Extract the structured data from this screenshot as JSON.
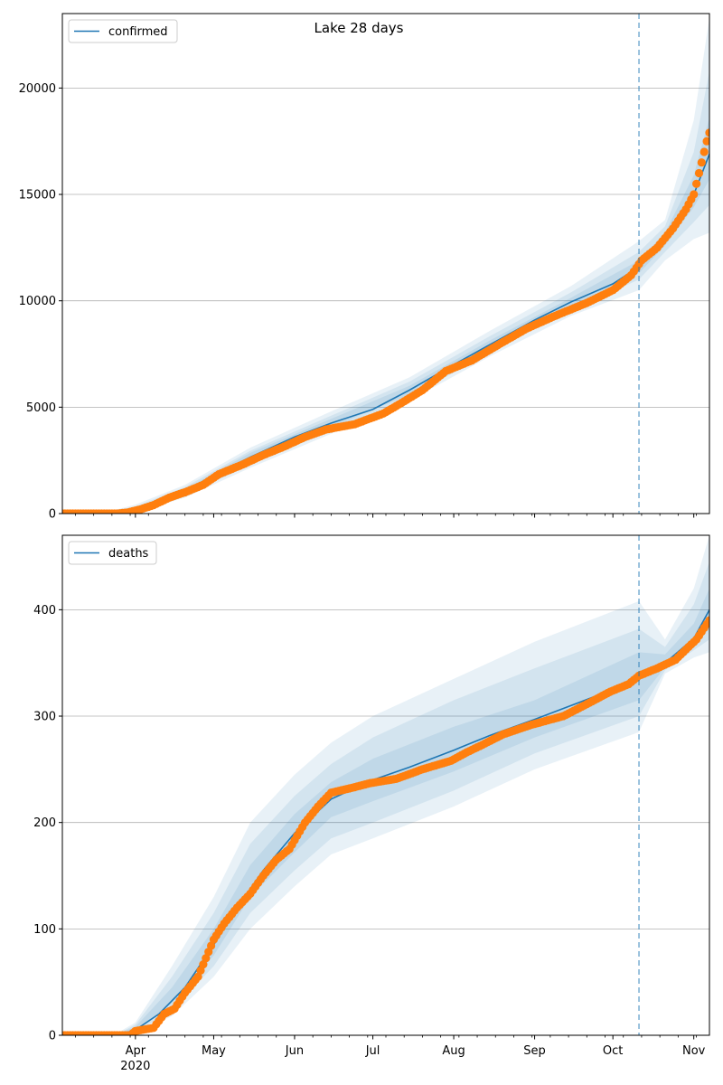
{
  "figure": {
    "title": "Lake 28 days"
  },
  "colors": {
    "band": "#1f77b4",
    "model": "#1f77b4",
    "observed": "#ff7f0e",
    "grid": "#b0b0b0",
    "cutoff": "#1f77b4"
  },
  "x_axis": {
    "range": [
      "2020-03-04",
      "2020-11-07"
    ],
    "tick_labels": [
      "Apr",
      "May",
      "Jun",
      "Jul",
      "Aug",
      "Sep",
      "Oct",
      "Nov"
    ],
    "tick_dates": [
      "2020-04-01",
      "2020-05-01",
      "2020-06-01",
      "2020-07-01",
      "2020-08-01",
      "2020-09-01",
      "2020-10-01",
      "2020-11-01"
    ],
    "year_label": "2020",
    "forecast_start": "2020-10-11"
  },
  "chart_data": [
    {
      "type": "line",
      "title": "Lake 28 days",
      "legend": {
        "label": "confirmed",
        "position": "top-left"
      },
      "ylim": [
        0,
        23500
      ],
      "yticks": [
        0,
        5000,
        10000,
        15000,
        20000
      ],
      "grid": "y",
      "model_series": [
        [
          "2020-03-04",
          0
        ],
        [
          "2020-03-20",
          10
        ],
        [
          "2020-03-27",
          60
        ],
        [
          "2020-04-01",
          200
        ],
        [
          "2020-04-10",
          600
        ],
        [
          "2020-04-20",
          1050
        ],
        [
          "2020-05-01",
          1800
        ],
        [
          "2020-05-15",
          2650
        ],
        [
          "2020-06-01",
          3600
        ],
        [
          "2020-06-15",
          4250
        ],
        [
          "2020-07-01",
          4900
        ],
        [
          "2020-07-15",
          5800
        ],
        [
          "2020-08-01",
          7000
        ],
        [
          "2020-08-15",
          7950
        ],
        [
          "2020-09-01",
          9100
        ],
        [
          "2020-09-15",
          9950
        ],
        [
          "2020-10-01",
          10800
        ],
        [
          "2020-10-11",
          11600
        ],
        [
          "2020-10-21",
          12900
        ],
        [
          "2020-11-01",
          15000
        ],
        [
          "2020-11-07",
          16900
        ]
      ],
      "bands": [
        {
          "name": "outer",
          "points": [
            [
              "2020-03-04",
              0,
              0
            ],
            [
              "2020-03-20",
              0,
              40
            ],
            [
              "2020-04-01",
              50,
              420
            ],
            [
              "2020-04-20",
              750,
              1350
            ],
            [
              "2020-05-15",
              2150,
              3100
            ],
            [
              "2020-06-15",
              3750,
              4800
            ],
            [
              "2020-07-15",
              5300,
              6400
            ],
            [
              "2020-08-15",
              7400,
              8600
            ],
            [
              "2020-09-15",
              9300,
              10700
            ],
            [
              "2020-10-11",
              10500,
              12800
            ],
            [
              "2020-10-21",
              11900,
              13800
            ],
            [
              "2020-11-01",
              12900,
              18500
            ],
            [
              "2020-11-07",
              13200,
              23300
            ]
          ]
        },
        {
          "name": "middle",
          "points": [
            [
              "2020-03-04",
              0,
              0
            ],
            [
              "2020-03-20",
              0,
              25
            ],
            [
              "2020-04-01",
              100,
              330
            ],
            [
              "2020-04-20",
              850,
              1250
            ],
            [
              "2020-05-15",
              2300,
              2950
            ],
            [
              "2020-06-15",
              3900,
              4600
            ],
            [
              "2020-07-15",
              5450,
              6200
            ],
            [
              "2020-08-15",
              7600,
              8350
            ],
            [
              "2020-09-15",
              9550,
              10400
            ],
            [
              "2020-10-11",
              11000,
              12300
            ],
            [
              "2020-10-21",
              12300,
              13500
            ],
            [
              "2020-11-01",
              13700,
              17000
            ],
            [
              "2020-11-07",
              14500,
              20800
            ]
          ]
        },
        {
          "name": "inner",
          "points": [
            [
              "2020-03-04",
              0,
              0
            ],
            [
              "2020-03-20",
              2,
              15
            ],
            [
              "2020-04-01",
              150,
              260
            ],
            [
              "2020-04-20",
              950,
              1150
            ],
            [
              "2020-05-15",
              2450,
              2850
            ],
            [
              "2020-06-15",
              4050,
              4450
            ],
            [
              "2020-07-15",
              5600,
              6000
            ],
            [
              "2020-08-15",
              7750,
              8150
            ],
            [
              "2020-09-15",
              9750,
              10150
            ],
            [
              "2020-10-11",
              11300,
              11900
            ],
            [
              "2020-10-21",
              12600,
              13200
            ],
            [
              "2020-11-01",
              14400,
              15900
            ],
            [
              "2020-11-07",
              15700,
              18600
            ]
          ]
        }
      ],
      "observed_series": [
        [
          "2020-03-04",
          0
        ],
        [
          "2020-03-25",
          0
        ],
        [
          "2020-03-29",
          50
        ],
        [
          "2020-04-03",
          200
        ],
        [
          "2020-04-08",
          400
        ],
        [
          "2020-04-14",
          750
        ],
        [
          "2020-04-20",
          1000
        ],
        [
          "2020-04-27",
          1350
        ],
        [
          "2020-05-03",
          1850
        ],
        [
          "2020-05-12",
          2300
        ],
        [
          "2020-05-20",
          2750
        ],
        [
          "2020-05-28",
          3150
        ],
        [
          "2020-06-05",
          3600
        ],
        [
          "2020-06-13",
          3950
        ],
        [
          "2020-06-24",
          4200
        ],
        [
          "2020-07-05",
          4700
        ],
        [
          "2020-07-12",
          5200
        ],
        [
          "2020-07-20",
          5800
        ],
        [
          "2020-07-29",
          6700
        ],
        [
          "2020-08-08",
          7200
        ],
        [
          "2020-08-19",
          8000
        ],
        [
          "2020-08-29",
          8700
        ],
        [
          "2020-09-09",
          9300
        ],
        [
          "2020-09-21",
          9900
        ],
        [
          "2020-10-01",
          10500
        ],
        [
          "2020-10-08",
          11200
        ],
        [
          "2020-10-12",
          11900
        ],
        [
          "2020-10-18",
          12500
        ],
        [
          "2020-10-24",
          13400
        ],
        [
          "2020-10-29",
          14300
        ],
        [
          "2020-11-01",
          15000
        ],
        [
          "2020-11-03",
          16000
        ],
        [
          "2020-11-05",
          17000
        ],
        [
          "2020-11-06",
          17500
        ],
        [
          "2020-11-07",
          17900
        ]
      ]
    },
    {
      "type": "line",
      "legend": {
        "label": "deaths",
        "position": "top-left"
      },
      "ylim": [
        0,
        470
      ],
      "yticks": [
        0,
        100,
        200,
        300,
        400
      ],
      "grid": "y",
      "model_series": [
        [
          "2020-03-04",
          0
        ],
        [
          "2020-03-25",
          0
        ],
        [
          "2020-04-01",
          5
        ],
        [
          "2020-04-10",
          20
        ],
        [
          "2020-04-20",
          45
        ],
        [
          "2020-05-01",
          85
        ],
        [
          "2020-05-10",
          120
        ],
        [
          "2020-05-20",
          155
        ],
        [
          "2020-06-01",
          190
        ],
        [
          "2020-06-15",
          222
        ],
        [
          "2020-07-01",
          240
        ],
        [
          "2020-07-15",
          252
        ],
        [
          "2020-08-01",
          268
        ],
        [
          "2020-08-15",
          282
        ],
        [
          "2020-09-01",
          297
        ],
        [
          "2020-09-15",
          310
        ],
        [
          "2020-10-01",
          325
        ],
        [
          "2020-10-11",
          335
        ],
        [
          "2020-10-21",
          350
        ],
        [
          "2020-11-01",
          373
        ],
        [
          "2020-11-07",
          400
        ]
      ],
      "bands": [
        {
          "name": "outer",
          "points": [
            [
              "2020-03-04",
              0,
              0
            ],
            [
              "2020-03-25",
              0,
              2
            ],
            [
              "2020-04-01",
              1,
              12
            ],
            [
              "2020-04-15",
              18,
              65
            ],
            [
              "2020-05-01",
              55,
              130
            ],
            [
              "2020-05-15",
              100,
              200
            ],
            [
              "2020-06-01",
              140,
              245
            ],
            [
              "2020-06-15",
              170,
              275
            ],
            [
              "2020-07-01",
              185,
              300
            ],
            [
              "2020-08-01",
              215,
              335
            ],
            [
              "2020-09-01",
              250,
              370
            ],
            [
              "2020-10-11",
              285,
              408
            ],
            [
              "2020-10-21",
              340,
              372
            ],
            [
              "2020-11-01",
              355,
              420
            ],
            [
              "2020-11-07",
              360,
              470
            ]
          ]
        },
        {
          "name": "middle",
          "points": [
            [
              "2020-03-04",
              0,
              0
            ],
            [
              "2020-03-25",
              0,
              1
            ],
            [
              "2020-04-01",
              2,
              10
            ],
            [
              "2020-04-15",
              24,
              55
            ],
            [
              "2020-05-01",
              65,
              115
            ],
            [
              "2020-05-15",
              115,
              180
            ],
            [
              "2020-06-01",
              155,
              225
            ],
            [
              "2020-06-15",
              185,
              255
            ],
            [
              "2020-07-01",
              200,
              280
            ],
            [
              "2020-08-01",
              230,
              315
            ],
            [
              "2020-09-01",
              265,
              345
            ],
            [
              "2020-10-11",
              300,
              382
            ],
            [
              "2020-10-21",
              343,
              365
            ],
            [
              "2020-11-01",
              362,
              405
            ],
            [
              "2020-11-07",
              372,
              445
            ]
          ]
        },
        {
          "name": "inner",
          "points": [
            [
              "2020-03-04",
              0,
              0
            ],
            [
              "2020-03-25",
              0,
              1
            ],
            [
              "2020-04-01",
              3,
              8
            ],
            [
              "2020-04-15",
              30,
              45
            ],
            [
              "2020-05-01",
              75,
              100
            ],
            [
              "2020-05-15",
              130,
              160
            ],
            [
              "2020-06-01",
              172,
              208
            ],
            [
              "2020-06-15",
              205,
              238
            ],
            [
              "2020-07-01",
              220,
              260
            ],
            [
              "2020-08-01",
              248,
              290
            ],
            [
              "2020-09-01",
              280,
              315
            ],
            [
              "2020-10-11",
              315,
              360
            ],
            [
              "2020-10-21",
              346,
              358
            ],
            [
              "2020-11-01",
              366,
              387
            ],
            [
              "2020-11-07",
              382,
              420
            ]
          ]
        }
      ],
      "observed_series": [
        [
          "2020-03-04",
          0
        ],
        [
          "2020-03-30",
          0
        ],
        [
          "2020-04-01",
          4
        ],
        [
          "2020-04-08",
          7
        ],
        [
          "2020-04-12",
          20
        ],
        [
          "2020-04-16",
          25
        ],
        [
          "2020-04-20",
          40
        ],
        [
          "2020-04-25",
          55
        ],
        [
          "2020-05-01",
          90
        ],
        [
          "2020-05-05",
          105
        ],
        [
          "2020-05-10",
          120
        ],
        [
          "2020-05-15",
          133
        ],
        [
          "2020-05-20",
          150
        ],
        [
          "2020-05-25",
          165
        ],
        [
          "2020-05-30",
          175
        ],
        [
          "2020-06-05",
          200
        ],
        [
          "2020-06-10",
          215
        ],
        [
          "2020-06-15",
          228
        ],
        [
          "2020-06-22",
          232
        ],
        [
          "2020-06-30",
          237
        ],
        [
          "2020-07-10",
          241
        ],
        [
          "2020-07-20",
          250
        ],
        [
          "2020-07-31",
          258
        ],
        [
          "2020-08-06",
          266
        ],
        [
          "2020-08-12",
          273
        ],
        [
          "2020-08-20",
          283
        ],
        [
          "2020-08-31",
          292
        ],
        [
          "2020-09-06",
          296
        ],
        [
          "2020-09-12",
          300
        ],
        [
          "2020-09-20",
          310
        ],
        [
          "2020-09-30",
          323
        ],
        [
          "2020-10-07",
          330
        ],
        [
          "2020-10-11",
          338
        ],
        [
          "2020-10-18",
          345
        ],
        [
          "2020-10-25",
          353
        ],
        [
          "2020-10-30",
          365
        ],
        [
          "2020-11-02",
          372
        ],
        [
          "2020-11-05",
          383
        ],
        [
          "2020-11-07",
          390
        ]
      ]
    }
  ]
}
